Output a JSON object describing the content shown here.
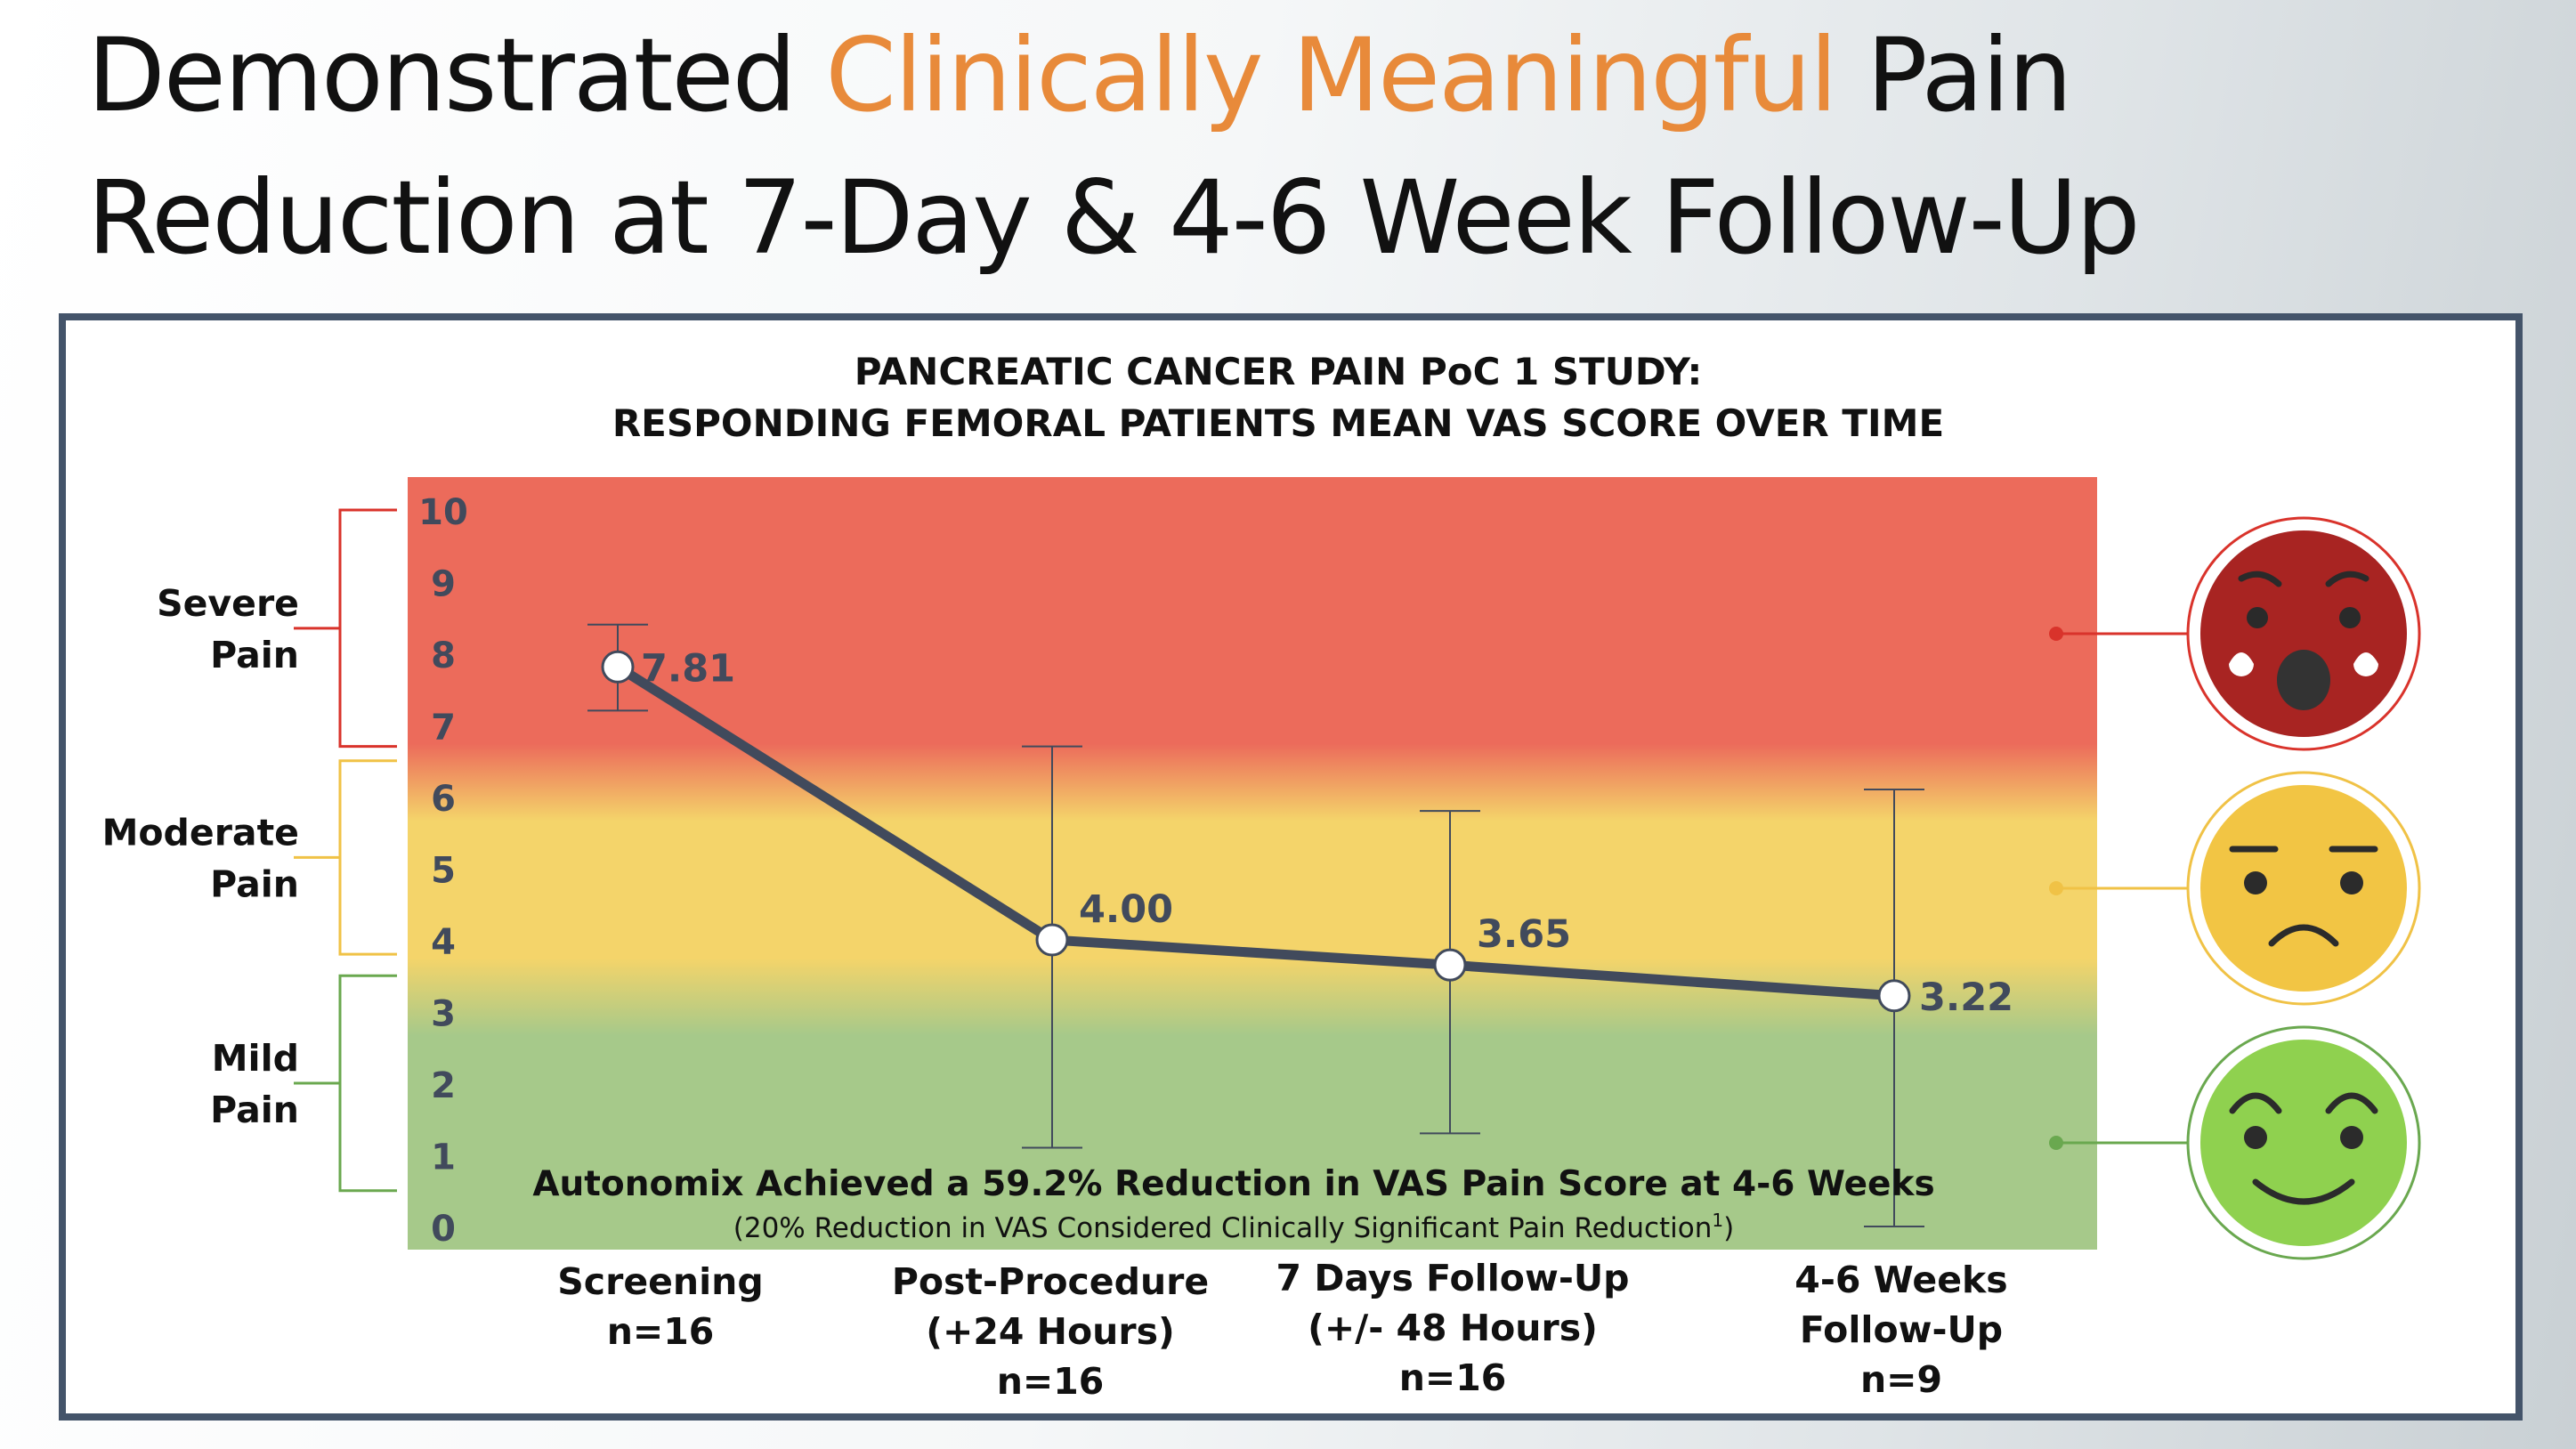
{
  "slide_title": {
    "line1_before": "Demonstrated ",
    "line1_highlight": "Clinically Meaningful",
    "line1_after": " Pain",
    "line2": "Reduction at 7-Day & 4-6 Week Follow-Up",
    "highlight_color": "#e88a3a"
  },
  "chart_data": {
    "type": "line",
    "title_lines": [
      "PANCREATIC CANCER PAIN PoC 1 STUDY:",
      "RESPONDING FEMORAL PATIENTS MEAN VAS SCORE OVER TIME"
    ],
    "categories": [
      [
        "Screening",
        "n=16"
      ],
      [
        "Post-Procedure",
        "(+24 Hours)",
        "n=16"
      ],
      [
        "7 Days Follow-Up",
        "(+/- 48 Hours)",
        "n=16"
      ],
      [
        "4-6 Weeks",
        "Follow-Up",
        "n=9"
      ]
    ],
    "series": [
      {
        "values": [
          7.81,
          4.0,
          3.65,
          3.22
        ],
        "labels": [
          "7.81",
          "4.00",
          "3.65",
          "3.22"
        ],
        "error_low": [
          7.2,
          1.1,
          1.3,
          0.0
        ],
        "error_high": [
          8.4,
          6.7,
          5.8,
          6.1
        ],
        "color": "#414a5c"
      }
    ],
    "ylim": [
      0,
      10
    ],
    "yticks": [
      "0",
      "1",
      "2",
      "3",
      "4",
      "5",
      "6",
      "7",
      "8",
      "9",
      "10"
    ],
    "background_bands": [
      {
        "from": 0,
        "to": 3.2,
        "color": "#a6c98a"
      },
      {
        "from": 3.2,
        "to": 6.2,
        "color": "#f4d46a"
      },
      {
        "from": 6.2,
        "to": 10.6,
        "color": "#ec6b5b"
      }
    ],
    "pain_categories": [
      {
        "lines": [
          "Severe",
          "Pain"
        ],
        "from": 6.7,
        "to": 10,
        "color": "#d9332b"
      },
      {
        "lines": [
          "Moderate",
          "Pain"
        ],
        "from": 3.8,
        "to": 6.5,
        "color": "#f0c246"
      },
      {
        "lines": [
          "Mild",
          "Pain"
        ],
        "from": 0.5,
        "to": 3.5,
        "color": "#6aa84f"
      }
    ],
    "annotation_main": "Autonomix Achieved a 59.2% Reduction in VAS Pain Score at 4-6 Weeks",
    "annotation_sub": "(20% Reduction in VAS Considered Clinically Significant Pain Reduction",
    "annotation_sup": "1",
    "annotation_close": ")",
    "faces": [
      {
        "name": "severe-pain-face",
        "icon": "crying-face-icon",
        "color": "#a82422",
        "ring": "#d9332b"
      },
      {
        "name": "moderate-pain-face",
        "icon": "frowning-face-icon",
        "color": "#f2c544",
        "ring": "#f0c246"
      },
      {
        "name": "mild-pain-face",
        "icon": "smiling-face-icon",
        "color": "#8fd14f",
        "ring": "#6aa84f"
      }
    ]
  }
}
